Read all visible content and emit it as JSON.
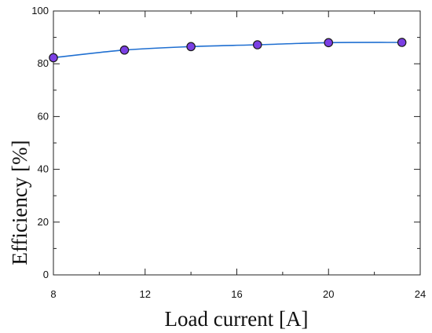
{
  "chart_data": {
    "type": "line",
    "title": "",
    "xlabel": "Load current [A]",
    "ylabel": "Efficiency [%]",
    "xlim": [
      8,
      24
    ],
    "ylim": [
      0,
      100
    ],
    "xticks": [
      8,
      12,
      16,
      20,
      24
    ],
    "yticks": [
      0,
      20,
      40,
      60,
      80,
      100
    ],
    "grid": false,
    "legend": "none",
    "series": [
      {
        "x": [
          8,
          11.1,
          14,
          16.9,
          20,
          23.2
        ],
        "y": [
          82.3,
          85.2,
          86.5,
          87.2,
          88.0,
          88.1
        ],
        "line_color": "#1f6fd1",
        "marker_fill": "#7b3fe4",
        "marker_edge": "#1a1a1a"
      }
    ]
  }
}
